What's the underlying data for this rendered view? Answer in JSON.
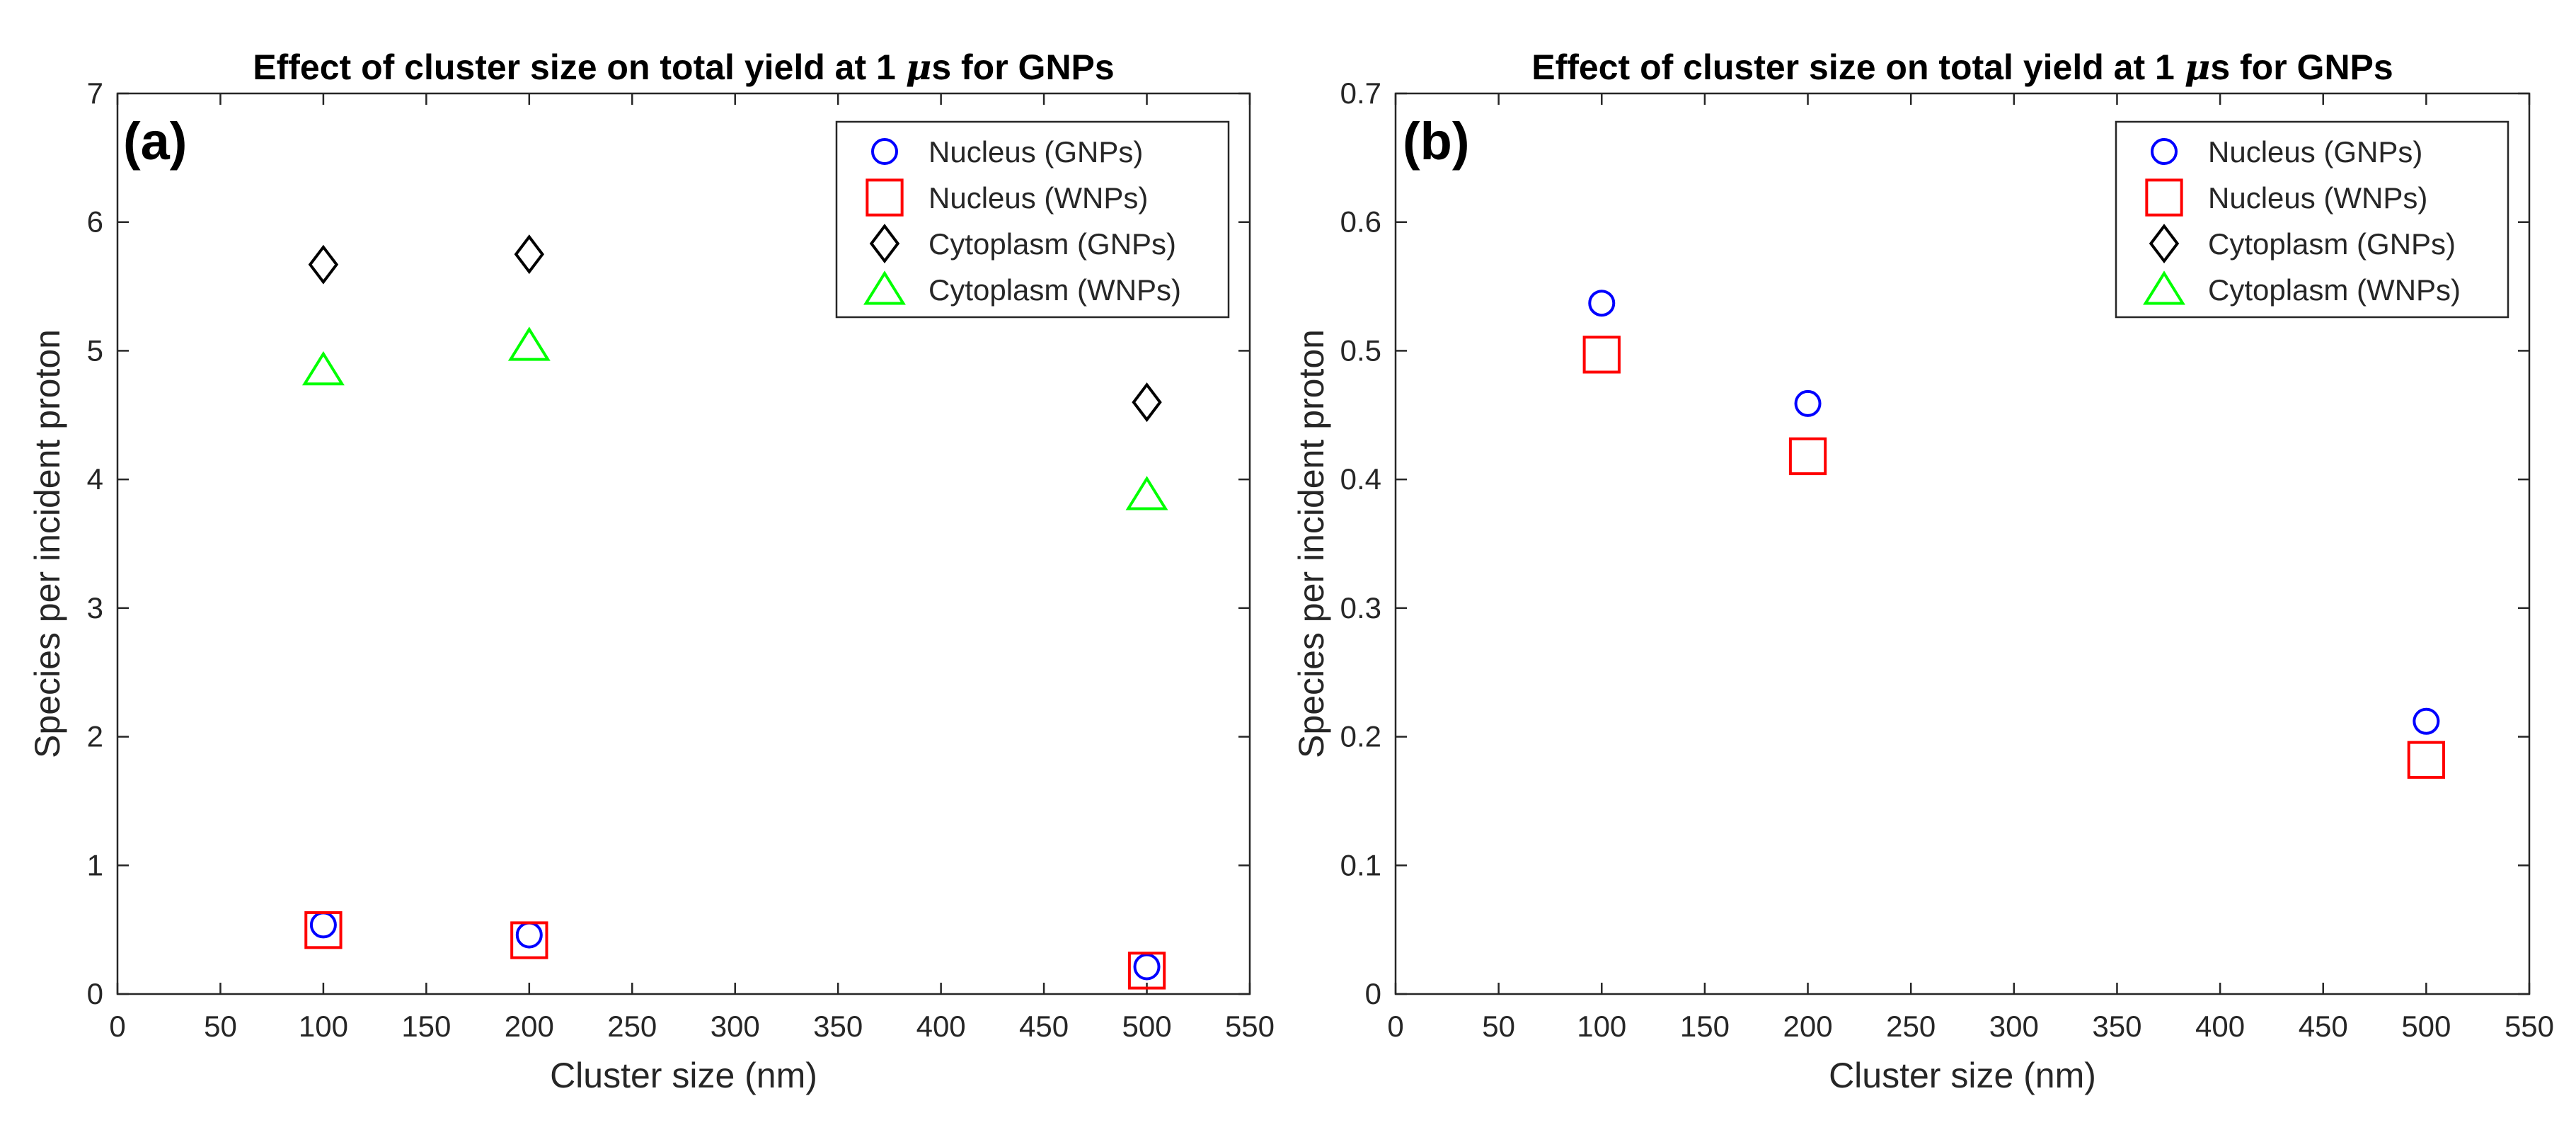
{
  "chart_data": [
    {
      "type": "scatter",
      "panel_label": "(a)",
      "title_parts": [
        "Effect of cluster size on total yield at 1 ",
        "μ",
        "s for GNPs"
      ],
      "title": "Effect of cluster size on total yield at 1 μs for GNPs",
      "xlabel": "Cluster size (nm)",
      "ylabel": "Species per incident proton",
      "xlim": [
        0,
        550
      ],
      "ylim": [
        0,
        7
      ],
      "xticks": [
        0,
        50,
        100,
        150,
        200,
        250,
        300,
        350,
        400,
        450,
        500,
        550
      ],
      "yticks": [
        0,
        1,
        2,
        3,
        4,
        5,
        6,
        7
      ],
      "ytick_labels": [
        "0",
        "1",
        "2",
        "3",
        "4",
        "5",
        "6",
        "7"
      ],
      "legend_position": "top-right",
      "series": [
        {
          "name": "Nucleus (GNPs)",
          "marker": "circle",
          "color": "#0000ff",
          "x": [
            100,
            200,
            500
          ],
          "y": [
            0.537,
            0.459,
            0.212
          ]
        },
        {
          "name": "Nucleus (WNPs)",
          "marker": "square",
          "color": "#ff0000",
          "x": [
            100,
            200,
            500
          ],
          "y": [
            0.497,
            0.418,
            0.182
          ]
        },
        {
          "name": "Cytoplasm (GNPs)",
          "marker": "diamond",
          "color": "#000000",
          "x": [
            100,
            200,
            500
          ],
          "y": [
            5.67,
            5.75,
            4.6
          ]
        },
        {
          "name": "Cytoplasm (WNPs)",
          "marker": "triangle",
          "color": "#00ff00",
          "x": [
            100,
            200,
            500
          ],
          "y": [
            4.85,
            5.04,
            3.88
          ]
        }
      ]
    },
    {
      "type": "scatter",
      "panel_label": "(b)",
      "title_parts": [
        "Effect of cluster size on total yield at 1 ",
        "μ",
        "s for GNPs"
      ],
      "title": "Effect of cluster size on total yield at 1 μs for GNPs",
      "xlabel": "Cluster size (nm)",
      "ylabel": "Species per incident proton",
      "xlim": [
        0,
        550
      ],
      "ylim": [
        0,
        0.7
      ],
      "xticks": [
        0,
        50,
        100,
        150,
        200,
        250,
        300,
        350,
        400,
        450,
        500,
        550
      ],
      "yticks": [
        0,
        0.1,
        0.2,
        0.3,
        0.4,
        0.5,
        0.6,
        0.7
      ],
      "ytick_labels": [
        "0",
        "0.1",
        "0.2",
        "0.3",
        "0.4",
        "0.5",
        "0.6",
        "0.7"
      ],
      "legend_position": "top-right",
      "series": [
        {
          "name": "Nucleus (GNPs)",
          "marker": "circle",
          "color": "#0000ff",
          "x": [
            100,
            200,
            500
          ],
          "y": [
            0.537,
            0.459,
            0.212
          ]
        },
        {
          "name": "Nucleus (WNPs)",
          "marker": "square",
          "color": "#ff0000",
          "x": [
            100,
            200,
            500
          ],
          "y": [
            0.497,
            0.418,
            0.182
          ]
        },
        {
          "name": "Cytoplasm (GNPs)",
          "marker": "diamond",
          "color": "#000000",
          "x": [],
          "y": []
        },
        {
          "name": "Cytoplasm (WNPs)",
          "marker": "triangle",
          "color": "#00ff00",
          "x": [],
          "y": []
        }
      ]
    }
  ]
}
